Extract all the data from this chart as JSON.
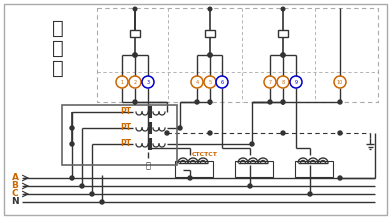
{
  "bg_color": "#ffffff",
  "lgray": "#aaaaaa",
  "dc": "#333333",
  "gray": "#666666",
  "orange": "#cc6600",
  "blue": "#0000cc",
  "meter_label": [
    "电",
    "能",
    "表"
  ],
  "term_colors": [
    "#cc6600",
    "#cc6600",
    "#0000cc",
    "#cc6600",
    "#cc6600",
    "#0000cc",
    "#cc6600",
    "#cc6600",
    "#0000cc",
    "#cc6600"
  ],
  "phase_labels": [
    "A",
    "B",
    "C",
    "N"
  ],
  "phase_colors": [
    "#cc6600",
    "#cc6600",
    "#cc6600",
    "#333333"
  ]
}
